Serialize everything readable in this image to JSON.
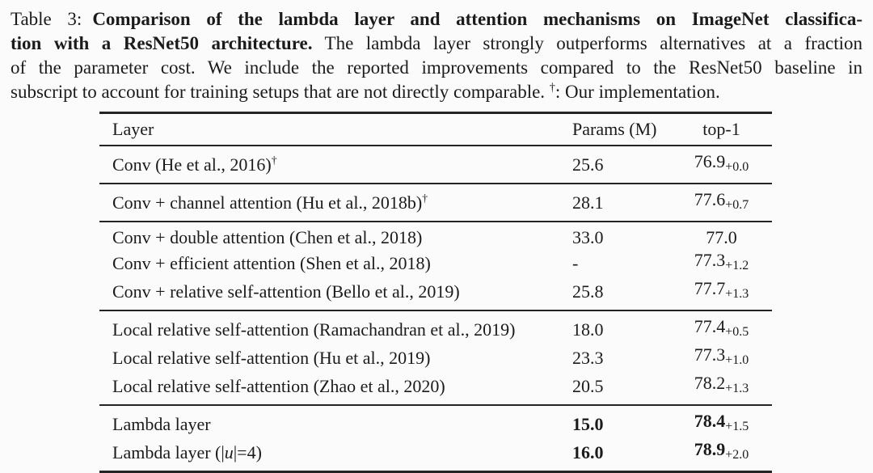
{
  "caption": {
    "lines": [
      {
        "justify": true,
        "segments": [
          {
            "t": "Table 3:",
            "s": "label"
          },
          {
            "t": "Comparison of the lambda layer and attention mechanisms on ImageNet classifica-",
            "s": "b"
          }
        ]
      },
      {
        "justify": true,
        "segments": [
          {
            "t": "tion with a ResNet50 architecture.",
            "s": "b"
          },
          {
            "t": " The lambda layer strongly outperforms alternatives at a fraction",
            "s": "n"
          }
        ]
      },
      {
        "justify": true,
        "segments": [
          {
            "t": "of the parameter cost. We include the reported improvements compared to the ResNet50 baseline in",
            "s": "n"
          }
        ]
      },
      {
        "justify": false,
        "segments": [
          {
            "t": "subscript to account for training setups that are not directly comparable. ",
            "s": "n"
          },
          {
            "t": "†",
            "s": "sup"
          },
          {
            "t": ": Our implementation.",
            "s": "n"
          }
        ]
      }
    ]
  },
  "table": {
    "columns": [
      "Layer",
      "Params (M)",
      "top-1"
    ],
    "groups": [
      {
        "rows": [
          {
            "layer": [
              {
                "t": "Conv (He et al., 2016)",
                "s": "n"
              },
              {
                "t": "†",
                "s": "sup"
              }
            ],
            "params": "25.6",
            "top1": {
              "main": "76.9",
              "sub": "+0.0"
            },
            "bold": false
          }
        ]
      },
      {
        "rows": [
          {
            "layer": [
              {
                "t": "Conv + channel attention (Hu et al., 2018b)",
                "s": "n"
              },
              {
                "t": "†",
                "s": "sup"
              }
            ],
            "params": "28.1",
            "top1": {
              "main": "77.6",
              "sub": "+0.7"
            },
            "bold": false
          }
        ]
      },
      {
        "rows": [
          {
            "layer": [
              {
                "t": "Conv + double attention (Chen et al., 2018)",
                "s": "n"
              }
            ],
            "params": "33.0",
            "top1": {
              "main": "77.0",
              "sub": null
            },
            "bold": false
          },
          {
            "layer": [
              {
                "t": "Conv + efficient attention (Shen et al., 2018)",
                "s": "n"
              }
            ],
            "params": "-",
            "top1": {
              "main": "77.3",
              "sub": "+1.2"
            },
            "bold": false
          },
          {
            "layer": [
              {
                "t": "Conv + relative self-attention (Bello et al., 2019)",
                "s": "n"
              }
            ],
            "params": "25.8",
            "top1": {
              "main": "77.7",
              "sub": "+1.3"
            },
            "bold": false
          }
        ]
      },
      {
        "rows": [
          {
            "layer": [
              {
                "t": "Local relative self-attention (Ramachandran et al., 2019)",
                "s": "n"
              }
            ],
            "params": "18.0",
            "top1": {
              "main": "77.4",
              "sub": "+0.5"
            },
            "bold": false
          },
          {
            "layer": [
              {
                "t": "Local relative self-attention (Hu et al., 2019)",
                "s": "n"
              }
            ],
            "params": "23.3",
            "top1": {
              "main": "77.3",
              "sub": "+1.0"
            },
            "bold": false
          },
          {
            "layer": [
              {
                "t": "Local relative self-attention (Zhao et al., 2020)",
                "s": "n"
              }
            ],
            "params": "20.5",
            "top1": {
              "main": "78.2",
              "sub": "+1.3"
            },
            "bold": false
          }
        ]
      },
      {
        "rows": [
          {
            "layer": [
              {
                "t": "Lambda layer",
                "s": "n"
              }
            ],
            "params": "15.0",
            "top1": {
              "main": "78.4",
              "sub": "+1.5"
            },
            "bold": true
          },
          {
            "layer": [
              {
                "t": "Lambda layer (|",
                "s": "n"
              },
              {
                "t": "u",
                "s": "i"
              },
              {
                "t": "|=4)",
                "s": "n"
              }
            ],
            "params": "16.0",
            "top1": {
              "main": "78.9",
              "sub": "+2.0"
            },
            "bold": true
          }
        ]
      }
    ]
  },
  "colors": {
    "text": "#1b1b1b",
    "rule": "#242424",
    "background": "#fbfbfb"
  }
}
